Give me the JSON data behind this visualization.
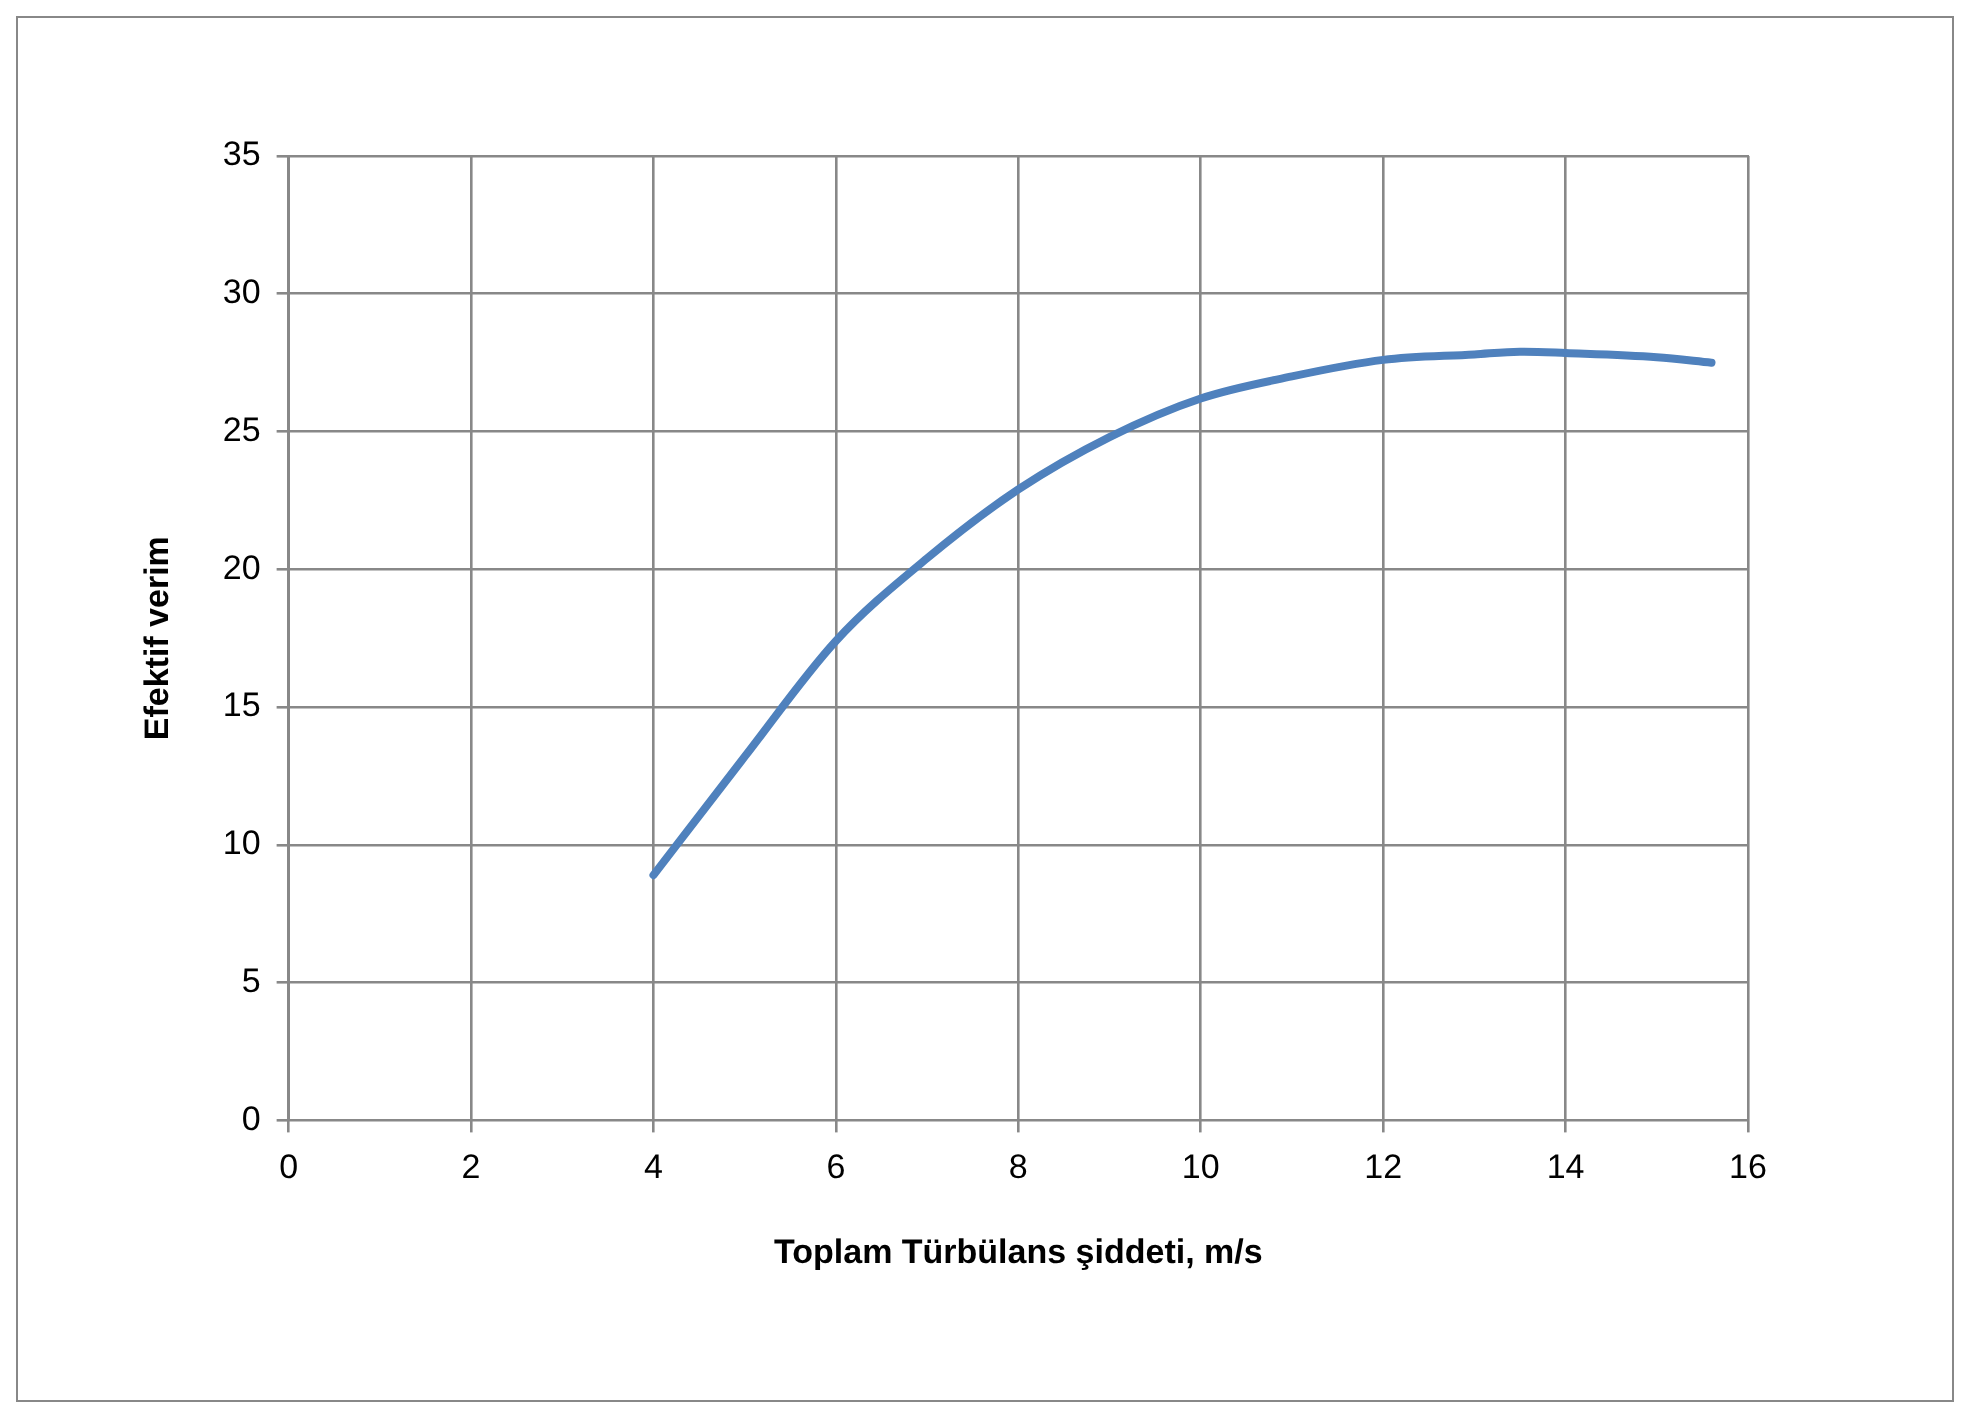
{
  "chart_data": {
    "type": "line",
    "xlabel": "Toplam Türbülans şiddeti, m/s",
    "ylabel": "Efektif verim",
    "series": [
      {
        "color": "#4f81bd",
        "x": [
          4,
          5,
          6,
          7,
          8,
          9,
          10,
          11,
          12,
          13,
          13.5,
          14,
          15,
          15.6
        ],
        "values": [
          8.9,
          13.2,
          17.4,
          20.4,
          22.9,
          24.8,
          26.2,
          27.0,
          27.6,
          27.8,
          27.9,
          27.85,
          27.7,
          27.5
        ]
      }
    ],
    "xlim": [
      0,
      16
    ],
    "xticks": [
      0,
      2,
      4,
      6,
      8,
      10,
      12,
      14,
      16
    ],
    "ylim": [
      0,
      35
    ],
    "yticks": [
      0,
      5,
      10,
      15,
      20,
      25,
      30,
      35
    ],
    "grid": true,
    "legend": false,
    "marker": "none",
    "line_style": "solid"
  }
}
